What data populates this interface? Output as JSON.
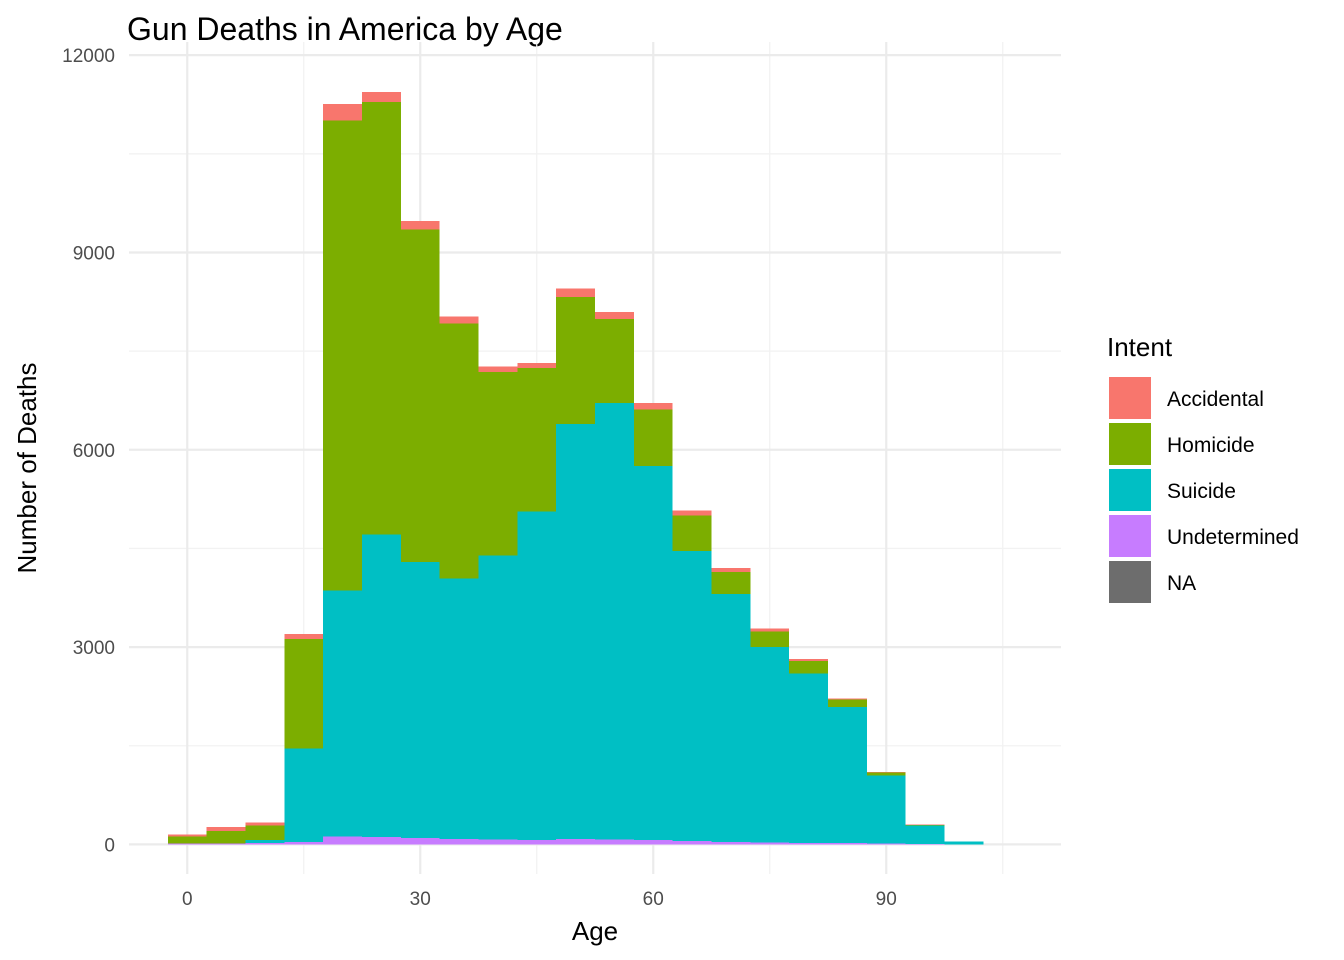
{
  "chart_data": {
    "type": "bar",
    "stacked": true,
    "title": "Gun Deaths in America by Age",
    "xlabel": "Age",
    "ylabel": "Number of Deaths",
    "xlim": [
      -7.5,
      112.5
    ],
    "ylim": [
      -450,
      12200
    ],
    "x_ticks": [
      0,
      30,
      60,
      90
    ],
    "x_tick_labels": [
      "0",
      "30",
      "60",
      "90"
    ],
    "y_ticks": [
      0,
      3000,
      6000,
      9000,
      12000
    ],
    "y_tick_labels": [
      "0",
      "3000",
      "6000",
      "9000",
      "12000"
    ],
    "bin_width": 5,
    "bin_starts": [
      -2.5,
      2.5,
      7.5,
      12.5,
      17.5,
      22.5,
      27.5,
      32.5,
      37.5,
      42.5,
      47.5,
      52.5,
      57.5,
      62.5,
      67.5,
      72.5,
      77.5,
      82.5,
      87.5,
      92.5,
      97.5
    ],
    "bin_centers": [
      0,
      5,
      10,
      15,
      20,
      25,
      30,
      35,
      40,
      45,
      50,
      55,
      60,
      65,
      70,
      75,
      80,
      85,
      90,
      95,
      100
    ],
    "grid": true,
    "legend": {
      "title": "Intent",
      "position": "right"
    },
    "series": [
      {
        "name": "Undetermined",
        "color": "#C77CFF",
        "values": [
          10,
          15,
          20,
          40,
          120,
          110,
          100,
          80,
          75,
          70,
          80,
          75,
          70,
          50,
          40,
          30,
          25,
          20,
          10,
          5,
          0
        ]
      },
      {
        "name": "Suicide",
        "color": "#00BFC4",
        "values": [
          0,
          0,
          50,
          1420,
          3740,
          4600,
          4190,
          3960,
          4320,
          4990,
          6310,
          6640,
          5680,
          4410,
          3770,
          2970,
          2570,
          2070,
          1040,
          280,
          45
        ]
      },
      {
        "name": "Homicide",
        "color": "#7CAE00",
        "values": [
          110,
          190,
          220,
          1660,
          7150,
          6580,
          5060,
          3880,
          2790,
          2180,
          1930,
          1270,
          860,
          540,
          330,
          240,
          190,
          110,
          40,
          10,
          0
        ]
      },
      {
        "name": "Accidental",
        "color": "#F8766D",
        "values": [
          30,
          60,
          40,
          80,
          250,
          150,
          130,
          110,
          80,
          80,
          130,
          110,
          100,
          80,
          60,
          40,
          35,
          20,
          10,
          5,
          0
        ]
      },
      {
        "name": "NA",
        "color": "#6D6D6D",
        "values": [
          0,
          0,
          0,
          0,
          0,
          0,
          0,
          0,
          0,
          0,
          0,
          0,
          0,
          0,
          0,
          0,
          0,
          0,
          0,
          0,
          0
        ]
      }
    ],
    "legend_order": [
      "Accidental",
      "Homicide",
      "Suicide",
      "Undetermined",
      "NA"
    ]
  }
}
